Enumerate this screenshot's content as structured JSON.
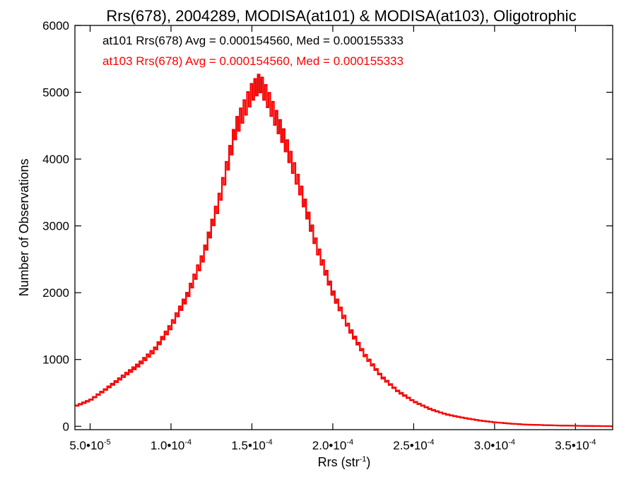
{
  "chart_data": {
    "type": "line",
    "title": "Rrs(678), 2004289, MODISA(at101) & MODISA(at103), Oligotrophic",
    "xlabel": "Rrs (str",
    "xlabel_sup": "-1",
    "xlabel_close": ")",
    "ylabel": "Number of Observations",
    "xlim": [
      4.06e-05,
      0.000373
    ],
    "ylim": [
      -50,
      6000
    ],
    "x_ticks": [
      {
        "value": 5e-05,
        "label": "5.0•10",
        "exp": "-5"
      },
      {
        "value": 0.0001,
        "label": "1.0•10",
        "exp": "-4"
      },
      {
        "value": 0.00015,
        "label": "1.5•10",
        "exp": "-4"
      },
      {
        "value": 0.0002,
        "label": "2.0•10",
        "exp": "-4"
      },
      {
        "value": 0.00025,
        "label": "2.5•10",
        "exp": "-4"
      },
      {
        "value": 0.0003,
        "label": "3.0•10",
        "exp": "-4"
      },
      {
        "value": 0.00035,
        "label": "3.5•10",
        "exp": "-4"
      }
    ],
    "y_ticks": [
      0,
      1000,
      2000,
      3000,
      4000,
      5000,
      6000
    ],
    "grid": false,
    "legend": [
      {
        "text": "at101 Rrs(678) Avg = 0.000154560, Med = 0.000155333",
        "color": "#000000"
      },
      {
        "text": "at103 Rrs(678) Avg = 0.000154560, Med = 0.000155333",
        "color": "#ff0000"
      }
    ],
    "series": [
      {
        "name": "at101",
        "color": "#000000"
      },
      {
        "name": "at103",
        "color": "#ff0000"
      }
    ],
    "x": [
      4.06e-05,
      5e-05,
      6e-05,
      7e-05,
      8e-05,
      9e-05,
      0.0001,
      0.00011,
      0.00012,
      0.00013,
      0.00014,
      0.00015,
      0.000155,
      0.00016,
      0.00017,
      0.00018,
      0.00019,
      0.0002,
      0.00021,
      0.00022,
      0.00023,
      0.00024,
      0.00025,
      0.00026,
      0.00027,
      0.00028,
      0.00029,
      0.0003,
      0.00031,
      0.00032,
      0.00034,
      0.00036,
      0.000373
    ],
    "y": [
      300,
      390,
      560,
      740,
      920,
      1150,
      1500,
      1950,
      2550,
      3400,
      4450,
      5000,
      5150,
      4900,
      4300,
      3550,
      2700,
      2000,
      1470,
      1060,
      750,
      530,
      375,
      260,
      180,
      130,
      90,
      60,
      40,
      25,
      12,
      5,
      2
    ]
  }
}
